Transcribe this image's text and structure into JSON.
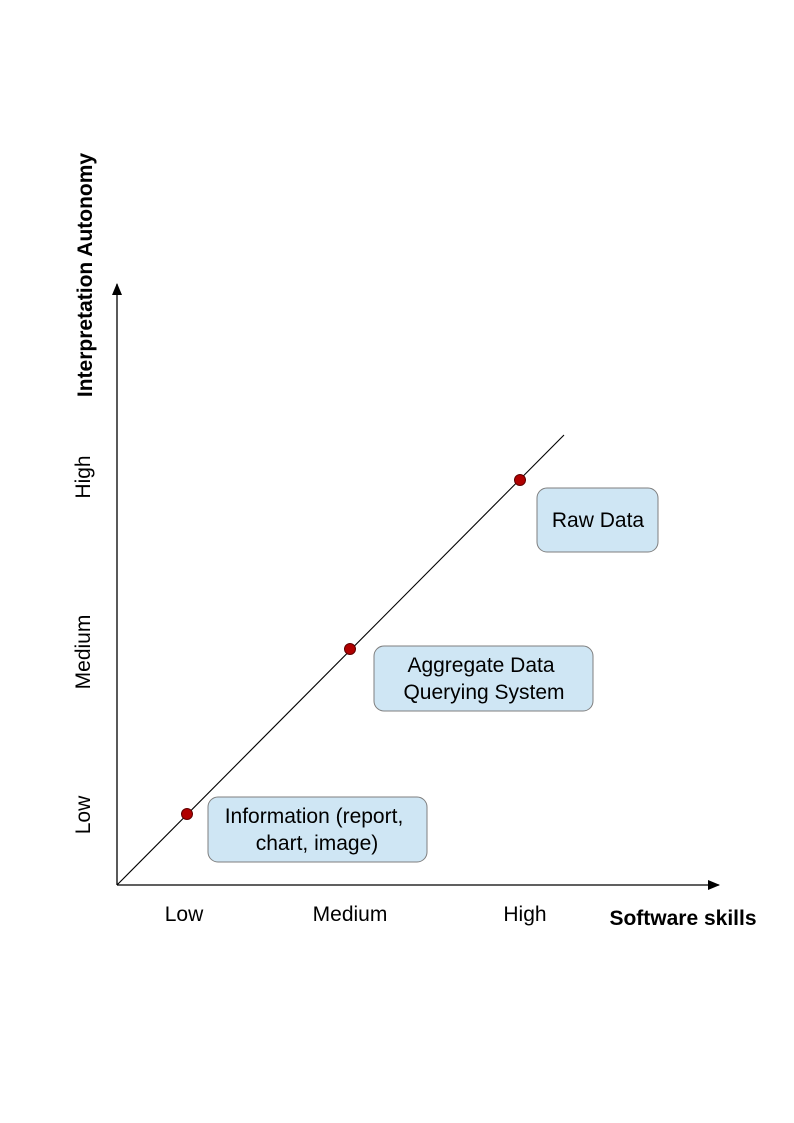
{
  "colors": {
    "box_fill": "#cfe6f4",
    "box_stroke": "#7f7f7f",
    "point_fill": "#b00000",
    "point_stroke": "#600000",
    "axis": "#000000"
  },
  "y_axis": {
    "title": "Interpretation Autonomy",
    "ticks": [
      "Low",
      "Medium",
      "High"
    ]
  },
  "x_axis": {
    "title": "Software skills",
    "ticks": [
      "Low",
      "Medium",
      "High"
    ]
  },
  "points": [
    {
      "x_level": "Low",
      "y_level": "Low",
      "label_lines": [
        "Information (report,",
        "chart, image)"
      ]
    },
    {
      "x_level": "Medium",
      "y_level": "Medium",
      "label_lines": [
        "Aggregate Data",
        "Querying System"
      ]
    },
    {
      "x_level": "High",
      "y_level": "High",
      "label_lines": [
        "Raw Data"
      ]
    }
  ]
}
